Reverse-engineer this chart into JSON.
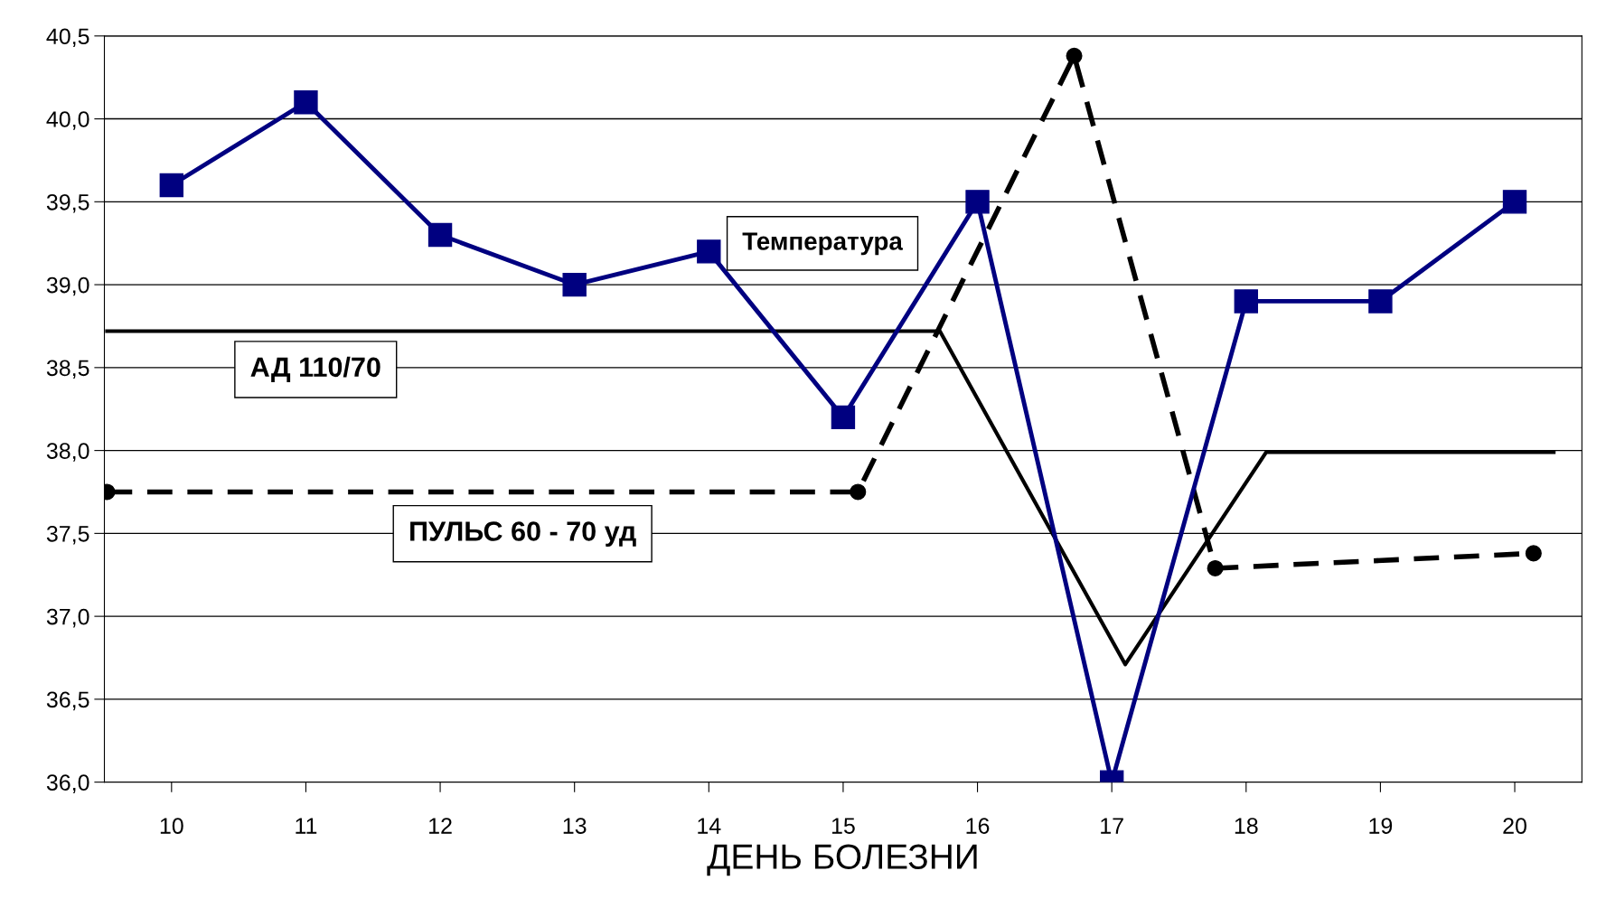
{
  "chart_data": {
    "type": "line",
    "xlabel": "ДЕНЬ БОЛЕЗНИ",
    "x": [
      10,
      11,
      12,
      13,
      14,
      15,
      16,
      17,
      18,
      19,
      20
    ],
    "series": [
      {
        "color": "#000080",
        "marker": "square",
        "line_style": "solid",
        "values": [
          39.6,
          40.1,
          39.3,
          39.0,
          39.2,
          38.2,
          39.5,
          36.0,
          38.9,
          38.9,
          39.5
        ]
      },
      {
        "color": "#000000",
        "marker": "none",
        "line_style": "solid",
        "x": [
          9.52,
          15.72,
          17.1,
          18.15,
          20.29
        ],
        "values": [
          38.72,
          38.72,
          36.71,
          37.99,
          37.99
        ]
      },
      {
        "color": "#000000",
        "marker": "circle",
        "line_style": "dashed",
        "x": [
          9.52,
          15.11,
          16.72,
          17.77,
          20.14
        ],
        "values": [
          37.75,
          37.75,
          40.38,
          37.29,
          37.38
        ]
      }
    ],
    "xlim": [
      9.5,
      20.5
    ],
    "xticks": [
      10,
      11,
      12,
      13,
      14,
      15,
      16,
      17,
      18,
      19,
      20
    ],
    "ylim": [
      36.0,
      40.5
    ],
    "yticks": [
      {
        "value": 36.0,
        "label": "36,0"
      },
      {
        "value": 36.5,
        "label": "36,5"
      },
      {
        "value": 37.0,
        "label": "37,0"
      },
      {
        "value": 37.5,
        "label": "37,5"
      },
      {
        "value": 38.0,
        "label": "38,0"
      },
      {
        "value": 38.5,
        "label": "38,5"
      },
      {
        "value": 39.0,
        "label": "39,0"
      },
      {
        "value": 39.5,
        "label": "39,5"
      },
      {
        "value": 40.0,
        "label": "40,0"
      },
      {
        "value": 40.5,
        "label": "40,5"
      }
    ],
    "grid": "y",
    "legend": false,
    "annotations": [
      "Температура",
      "АД 110/70",
      "ПУЛЬС 60 - 70 уд"
    ]
  }
}
